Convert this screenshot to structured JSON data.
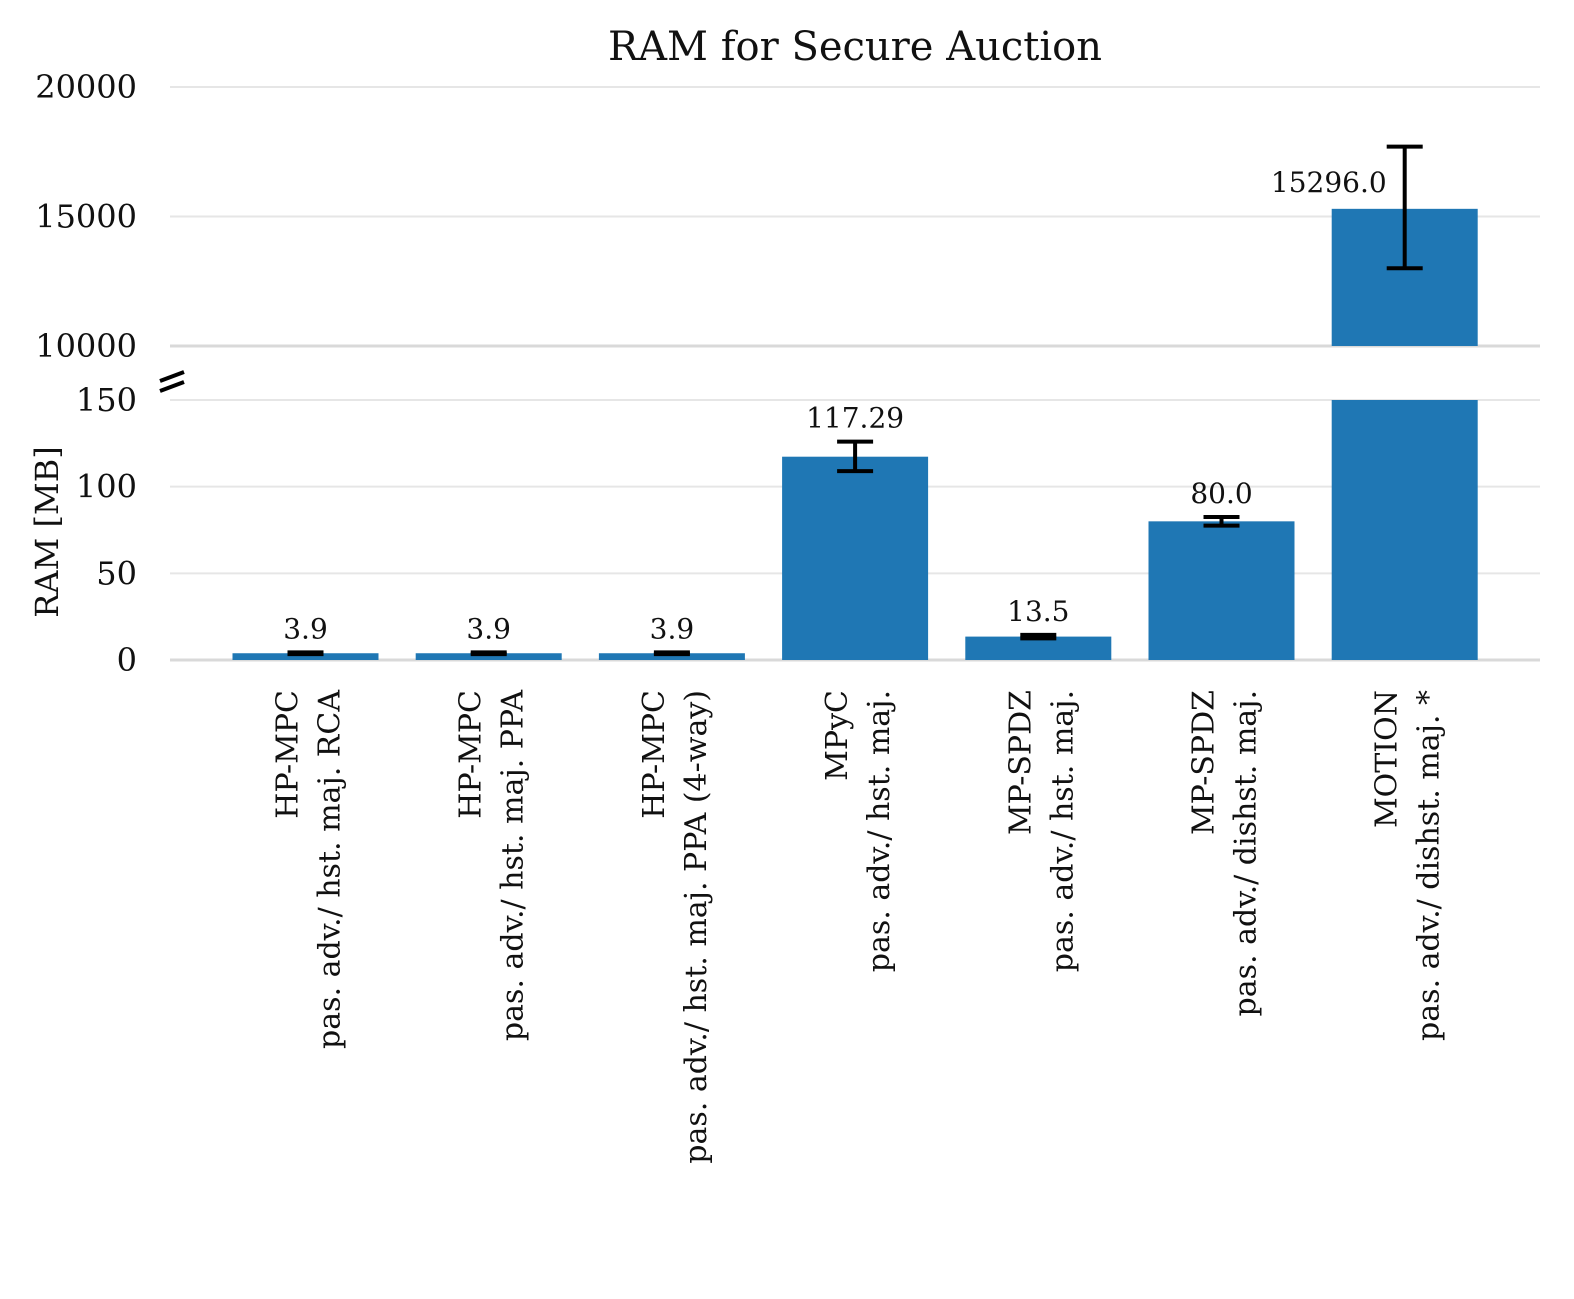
{
  "chart_data": {
    "type": "bar",
    "title": "RAM for Secure Auction",
    "ylabel": "RAM [MB]",
    "xlabel": "",
    "broken_axis": true,
    "lower_ylim": [
      0,
      150
    ],
    "upper_ylim": [
      10000,
      20000
    ],
    "lower_yticks": [
      "0",
      "50",
      "100",
      "150"
    ],
    "upper_yticks": [
      "10000",
      "15000",
      "20000"
    ],
    "grid": true,
    "bar_color": "#1f77b4",
    "categories": [
      {
        "name": "HP-MPC",
        "desc": "pas. adv./ hst. maj. RCA"
      },
      {
        "name": "HP-MPC",
        "desc": "pas. adv./ hst. maj. PPA"
      },
      {
        "name": "HP-MPC",
        "desc": "pas. adv./ hst. maj. PPA (4-way)"
      },
      {
        "name": "MPyC",
        "desc": "pas. adv./ hst. maj."
      },
      {
        "name": "MP-SPDZ",
        "desc": "pas. adv./ hst. maj."
      },
      {
        "name": "MP-SPDZ",
        "desc": "pas. adv./ dishst. maj."
      },
      {
        "name": "MOTION",
        "desc": "pas. adv./ dishst. maj. *"
      }
    ],
    "values": [
      3.9,
      3.9,
      3.9,
      117.29,
      13.5,
      80.0,
      15296.0
    ],
    "value_labels": [
      "3.9",
      "3.9",
      "3.9",
      "117.29",
      "13.5",
      "80.0",
      "15296.0"
    ],
    "error_low": [
      3.4,
      3.4,
      3.4,
      109,
      12.5,
      77.5,
      13000
    ],
    "error_high": [
      4.4,
      4.4,
      4.4,
      126,
      14.5,
      82.5,
      17700
    ]
  }
}
